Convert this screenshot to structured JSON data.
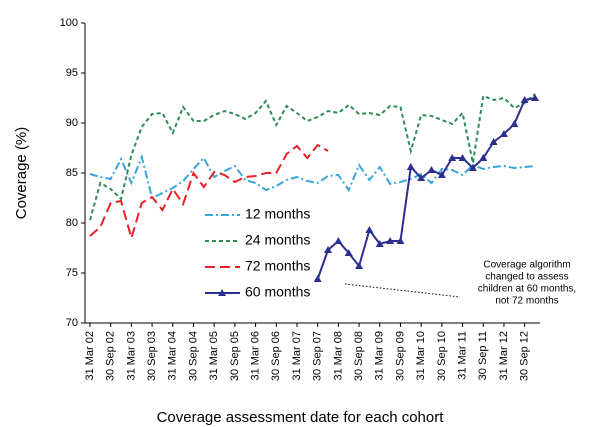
{
  "chart_data": {
    "type": "line",
    "y_label": "Coverage (%)",
    "x_label": "Coverage assessment date for each cohort",
    "annotation": [
      "Coverage algorithm",
      "changed to assess",
      "children at 60 months,",
      "not 72 months"
    ],
    "categories": [
      "31 Mar 02",
      null,
      "30 Sep 02",
      null,
      "31 Mar 03",
      null,
      "30 Sep 03",
      null,
      "31 Mar 04",
      null,
      "30 Sep 04",
      null,
      "31 Mar 05",
      null,
      "30 Sep 05",
      null,
      "31 Mar 06",
      null,
      "30 Sep 06",
      null,
      "31 Mar 07",
      null,
      "30 Sep 07",
      null,
      "31 Mar 08",
      null,
      "30 Sep 08",
      null,
      "31 Mar 09",
      null,
      "30 Sep 09",
      null,
      "31 Mar 10",
      null,
      "30 Sep 10",
      null,
      "31 Mar 11",
      null,
      "30 Sep 11",
      null,
      "31 Mar 12",
      null,
      "30 Sep 12",
      null
    ],
    "series": [
      {
        "name": "12 months",
        "color": "#3aa6d8",
        "line_style": "dash-dot",
        "values": [
          84.9,
          84.6,
          84.4,
          86.4,
          84.0,
          86.6,
          82.5,
          83.0,
          83.5,
          84.2,
          85.4,
          86.5,
          84.6,
          85.2,
          85.7,
          84.3,
          84.0,
          83.3,
          83.7,
          84.3,
          84.6,
          84.2,
          84.0,
          84.7,
          84.8,
          83.3,
          85.8,
          84.3,
          85.6,
          83.9,
          84.1,
          84.4,
          84.9,
          84.0,
          85.4,
          85.3,
          84.8,
          85.8,
          85.4,
          85.6,
          85.7,
          85.5,
          85.6,
          85.7
        ]
      },
      {
        "name": "24 months",
        "color": "#2e8b57",
        "line_style": "dash",
        "values": [
          80.3,
          84.0,
          83.4,
          82.4,
          86.8,
          89.6,
          90.9,
          91.0,
          89.0,
          91.6,
          90.2,
          90.2,
          90.8,
          91.2,
          90.9,
          90.4,
          91.0,
          92.2,
          89.8,
          91.7,
          91.0,
          90.2,
          90.6,
          91.2,
          91.0,
          91.8,
          90.9,
          91.0,
          90.8,
          91.7,
          91.6,
          87.2,
          90.8,
          90.7,
          90.3,
          89.9,
          91.0,
          86.0,
          92.7,
          92.3,
          92.5,
          91.5,
          92.0,
          92.9
        ]
      },
      {
        "name": "72 months",
        "color": "#e8202a",
        "line_style": "long-dash",
        "values": [
          78.7,
          79.6,
          82.0,
          82.2,
          78.5,
          82.0,
          82.6,
          81.3,
          83.4,
          81.9,
          85.0,
          83.6,
          85.1,
          84.8,
          84.1,
          84.6,
          84.7,
          85.0,
          85.0,
          86.9,
          87.7,
          86.5,
          87.8,
          87.2,
          null,
          null,
          null,
          null,
          null,
          null,
          null,
          null,
          null,
          null,
          null,
          null,
          null,
          null,
          null,
          null,
          null,
          null,
          null,
          null
        ]
      },
      {
        "name": "60 months",
        "color": "#2b2f8f",
        "line_style": "solid",
        "marker": "triangle",
        "values": [
          null,
          null,
          null,
          null,
          null,
          null,
          null,
          null,
          null,
          null,
          null,
          null,
          null,
          null,
          null,
          null,
          null,
          null,
          null,
          null,
          null,
          null,
          74.4,
          77.3,
          78.2,
          77.0,
          75.7,
          79.3,
          77.9,
          78.2,
          78.2,
          85.6,
          84.5,
          85.3,
          84.8,
          86.5,
          86.5,
          85.5,
          86.5,
          88.1,
          88.9,
          89.9,
          92.3,
          92.5
        ]
      }
    ],
    "ylim": [
      70,
      100
    ],
    "yticks": [
      70,
      75,
      80,
      85,
      90,
      95,
      100
    ],
    "grid": false
  }
}
